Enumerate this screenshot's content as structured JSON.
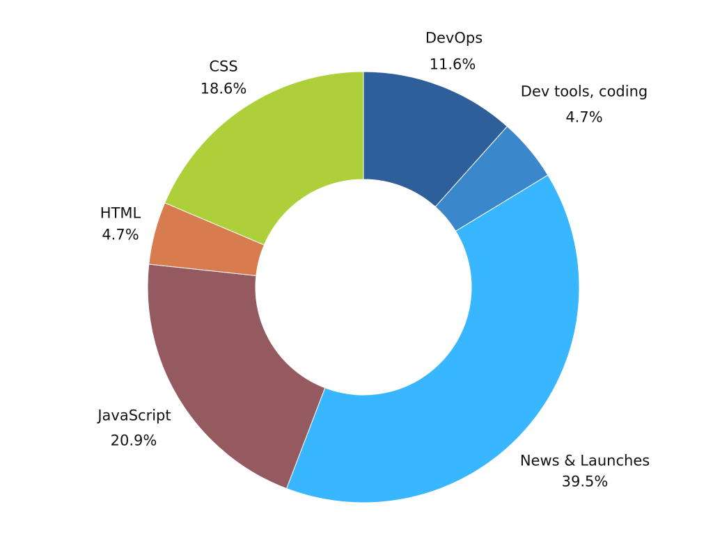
{
  "chart_data": {
    "type": "pie",
    "variant": "donut",
    "start_angle": "top, clockwise",
    "categories": [
      "DevOps",
      "Dev tools, coding",
      "News & Launches",
      "JavaScript",
      "HTML",
      "CSS"
    ],
    "values": [
      11.6,
      4.7,
      39.5,
      20.9,
      4.7,
      18.6
    ],
    "value_labels": [
      "11.6%",
      "4.7%",
      "39.5%",
      "20.9%",
      "4.7%",
      "18.6%"
    ],
    "colors": [
      "#2e5f9a",
      "#3a87cb",
      "#38b6ff",
      "#955a60",
      "#d77c4f",
      "#add03a"
    ],
    "legend": "none"
  }
}
